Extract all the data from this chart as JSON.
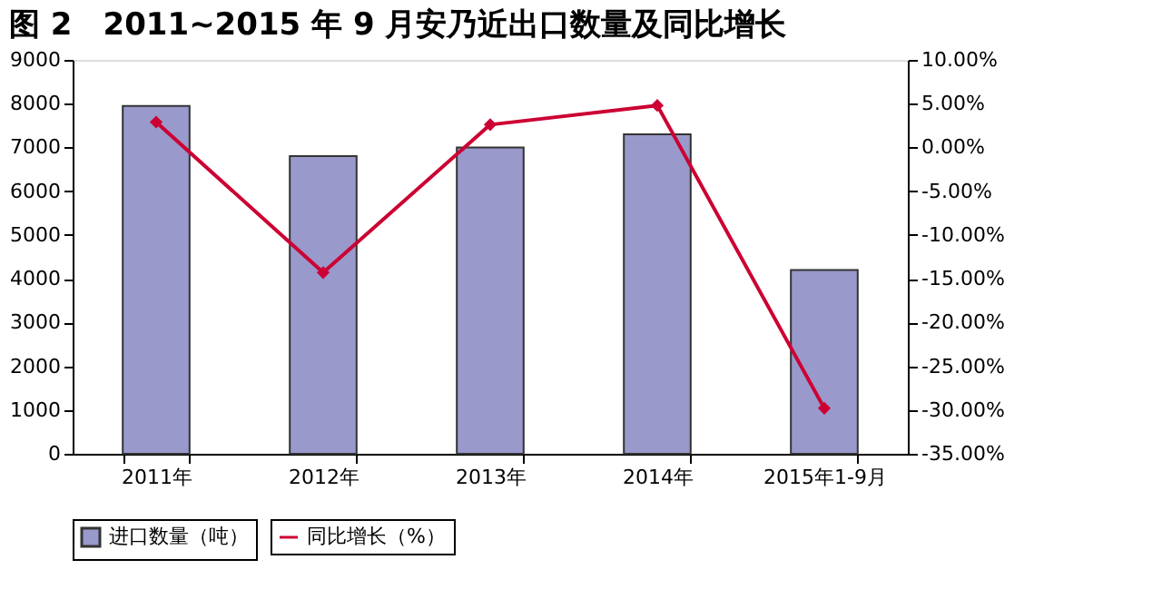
{
  "chart_data": {
    "type": "bar",
    "title": "图 2　2011~2015 年 9 月安乃近出口数量及同比增长",
    "categories": [
      "2011年",
      "2012年",
      "2013年",
      "2014年",
      "2015年1-9月"
    ],
    "series": [
      {
        "name": "进口数量（吨）",
        "color": "#9999cc",
        "values": [
          7950,
          6800,
          7000,
          7300,
          4200
        ]
      },
      {
        "name": "同比增长（%）",
        "color": "#cc0033",
        "type": "line",
        "axis": "y2",
        "marker": "diamond",
        "values": [
          2.9,
          -14.3,
          2.6,
          4.8,
          -29.8
        ]
      }
    ],
    "ylim": [
      0,
      9000
    ],
    "yticks": [
      0,
      1000,
      2000,
      3000,
      4000,
      5000,
      6000,
      7000,
      8000,
      9000
    ],
    "y2lim": [
      -35,
      10
    ],
    "y2ticks": [
      {
        "value": 10,
        "label": "10.00%"
      },
      {
        "value": 5,
        "label": "5.00%"
      },
      {
        "value": 0,
        "label": "0.00%"
      },
      {
        "value": -5,
        "label": "-5.00%"
      },
      {
        "value": -10,
        "label": "-10.00%"
      },
      {
        "value": -15,
        "label": "-15.00%"
      },
      {
        "value": -20,
        "label": "-20.00%"
      },
      {
        "value": -25,
        "label": "-25.00%"
      },
      {
        "value": -30,
        "label": "-30.00%"
      },
      {
        "value": -35,
        "label": "-35.00%"
      }
    ],
    "legend": "bottom",
    "grid": false
  }
}
